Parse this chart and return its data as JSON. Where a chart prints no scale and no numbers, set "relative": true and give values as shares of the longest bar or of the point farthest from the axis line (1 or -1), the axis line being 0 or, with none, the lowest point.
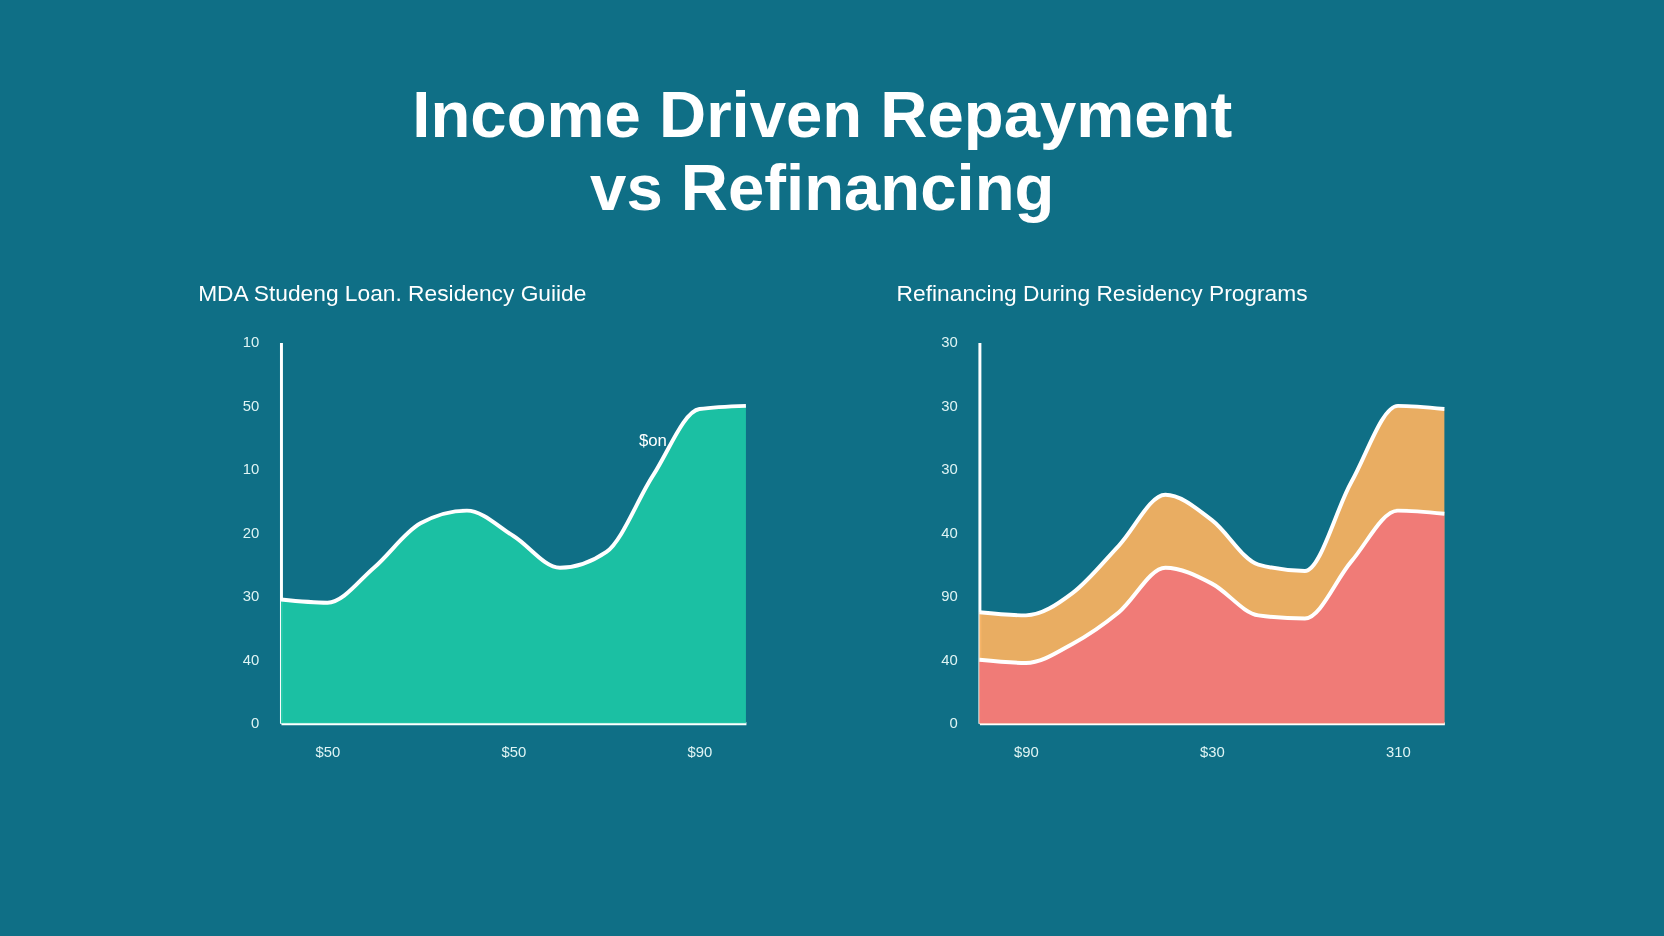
{
  "chart_data": [
    {
      "type": "area",
      "title": "Income Driven Repayment\nvs Refinancing",
      "subtitle": "MDA Studeng Loan. Residency Guiide",
      "relative": true,
      "categories": [
        null,
        "$50",
        null,
        null,
        null,
        "$50",
        null,
        null,
        null,
        "$90",
        null
      ],
      "series": [
        {
          "color": "#1cc4a4",
          "values": [
            0.39,
            0.38,
            0.49,
            0.63,
            0.67,
            0.59,
            0.49,
            0.54,
            0.78,
            0.99,
            1.0
          ]
        }
      ],
      "annotations": [
        "0",
        "40",
        "30",
        "20",
        "10",
        "50",
        "10",
        "$on"
      ]
    },
    {
      "type": "area",
      "subtitle": "Refinancing During Residency Programs",
      "relative": true,
      "categories": [
        null,
        "$90",
        null,
        null,
        null,
        "$30",
        null,
        null,
        null,
        "310",
        null
      ],
      "series": [
        {
          "color": "#f5b060",
          "values": [
            0.35,
            0.34,
            0.41,
            0.56,
            0.72,
            0.64,
            0.5,
            0.48,
            0.76,
            1.0,
            0.99
          ]
        },
        {
          "color": "#f07878",
          "values": [
            0.2,
            0.19,
            0.25,
            0.35,
            0.49,
            0.44,
            0.34,
            0.33,
            0.51,
            0.67,
            0.66
          ]
        }
      ],
      "annotations": [
        "0",
        "40",
        "90",
        "40",
        "30",
        "30",
        "30"
      ]
    }
  ]
}
